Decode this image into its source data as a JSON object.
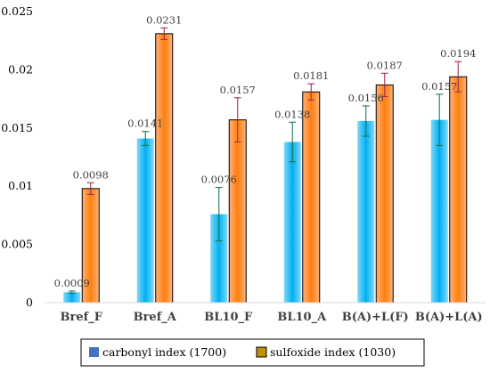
{
  "chart_data": {
    "type": "bar",
    "categories": [
      "Bref_F",
      "Bref_A",
      "BL10_F",
      "BL10_A",
      "B(A)+L(F)",
      "B(A)+L(A)"
    ],
    "series": [
      {
        "name": "carbonyl index (1700)",
        "color": "#00B0F0",
        "values": [
          0.0009,
          0.0141,
          0.0076,
          0.0138,
          0.0156,
          0.0157
        ],
        "errors": [
          0.0001,
          0.0006,
          0.0023,
          0.0017,
          0.0013,
          0.0022
        ],
        "labels": [
          "0.0009",
          "0.0141",
          "0.0076",
          "0.0138",
          "0.0156",
          "0.0157"
        ]
      },
      {
        "name": "sulfoxide index (1030)",
        "color": "#FF7F0E",
        "values": [
          0.0098,
          0.0231,
          0.0157,
          0.0181,
          0.0187,
          0.0194
        ],
        "errors": [
          0.0005,
          0.0005,
          0.0019,
          0.0007,
          0.001,
          0.0013
        ],
        "labels": [
          "0.0098",
          "0.0231",
          "0.0157",
          "0.0181",
          "0.0187",
          "0.0194"
        ]
      }
    ],
    "ylim": [
      0,
      0.025
    ],
    "yticks": [
      0,
      0.005,
      0.01,
      0.015,
      0.02,
      0.025
    ],
    "ytick_labels": [
      "0",
      "0.005",
      "0.01",
      "0.015",
      "0.02",
      "0.025"
    ],
    "title": "",
    "xlabel": "",
    "ylabel": "",
    "grid": false,
    "legend_placement": "bottom"
  }
}
